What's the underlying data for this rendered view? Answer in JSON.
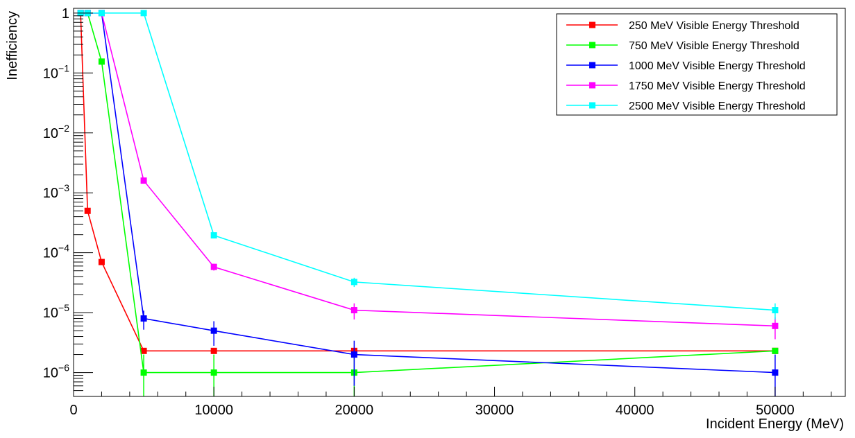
{
  "chart_data": {
    "type": "line",
    "xlabel": "Incident Energy (MeV)",
    "ylabel": "Inefficiency",
    "x_scale": "linear",
    "y_scale": "log",
    "xlim": [
      0,
      55000
    ],
    "ylim": [
      4e-07,
      1.2
    ],
    "x_ticks": [
      0,
      10000,
      20000,
      30000,
      40000,
      50000
    ],
    "x_tick_labels": [
      "0",
      "10000",
      "20000",
      "30000",
      "40000",
      "50000"
    ],
    "y_ticks": [
      1e-06,
      1e-05,
      0.0001,
      0.001,
      0.01,
      0.1,
      1
    ],
    "y_tick_labels": [
      {
        "base": "10",
        "exp": "−6"
      },
      {
        "base": "10",
        "exp": "−5"
      },
      {
        "base": "10",
        "exp": "−4"
      },
      {
        "base": "10",
        "exp": "−3"
      },
      {
        "base": "10",
        "exp": "−2"
      },
      {
        "base": "10",
        "exp": "−1"
      },
      {
        "base": "1",
        "exp": ""
      }
    ],
    "grid": false,
    "legend": "top-right",
    "series": [
      {
        "name": "250 MeV Visible Energy Threshold",
        "color": "#ff0000",
        "x": [
          500,
          1000,
          2000,
          5000,
          10000,
          20000,
          50000
        ],
        "y": [
          1,
          0.0005,
          7e-05,
          2.3e-06,
          2.3e-06,
          2.3e-06,
          2.3e-06
        ],
        "err": [
          0,
          0,
          0,
          0,
          0,
          0,
          0
        ]
      },
      {
        "name": "750 MeV Visible Energy Threshold",
        "color": "#00ff00",
        "x": [
          500,
          1000,
          2000,
          5000,
          10000,
          20000,
          50000
        ],
        "y": [
          1,
          1,
          0.155,
          1e-06,
          1e-06,
          1e-06,
          2.3e-06
        ],
        "err": [
          0,
          0,
          0,
          1e-06,
          1e-06,
          1e-06,
          0
        ]
      },
      {
        "name": "1000 MeV Visible Energy Threshold",
        "color": "#0000ff",
        "x": [
          500,
          1000,
          2000,
          5000,
          10000,
          20000,
          50000
        ],
        "y": [
          1,
          1,
          1,
          8e-06,
          5e-06,
          2e-06,
          1e-06
        ],
        "err": [
          0,
          0,
          0,
          2.8e-06,
          2.2e-06,
          1.4e-06,
          1e-06
        ]
      },
      {
        "name": "1750 MeV Visible Energy Threshold",
        "color": "#ff00ff",
        "x": [
          500,
          1000,
          2000,
          5000,
          10000,
          20000,
          50000
        ],
        "y": [
          1,
          1,
          1,
          0.0016,
          5.8e-05,
          1.1e-05,
          6e-06
        ],
        "err": [
          0,
          0,
          0,
          4e-05,
          7.6e-06,
          3.3e-06,
          2.4e-06
        ]
      },
      {
        "name": "2500 MeV Visible Energy Threshold",
        "color": "#00ffff",
        "x": [
          500,
          1000,
          2000,
          5000,
          10000,
          20000,
          50000
        ],
        "y": [
          1,
          1,
          1,
          1,
          0.000195,
          3.25e-05,
          1.1e-05
        ],
        "err": [
          0,
          0,
          0,
          0,
          1.4e-05,
          5.7e-06,
          3.3e-06
        ]
      }
    ]
  }
}
